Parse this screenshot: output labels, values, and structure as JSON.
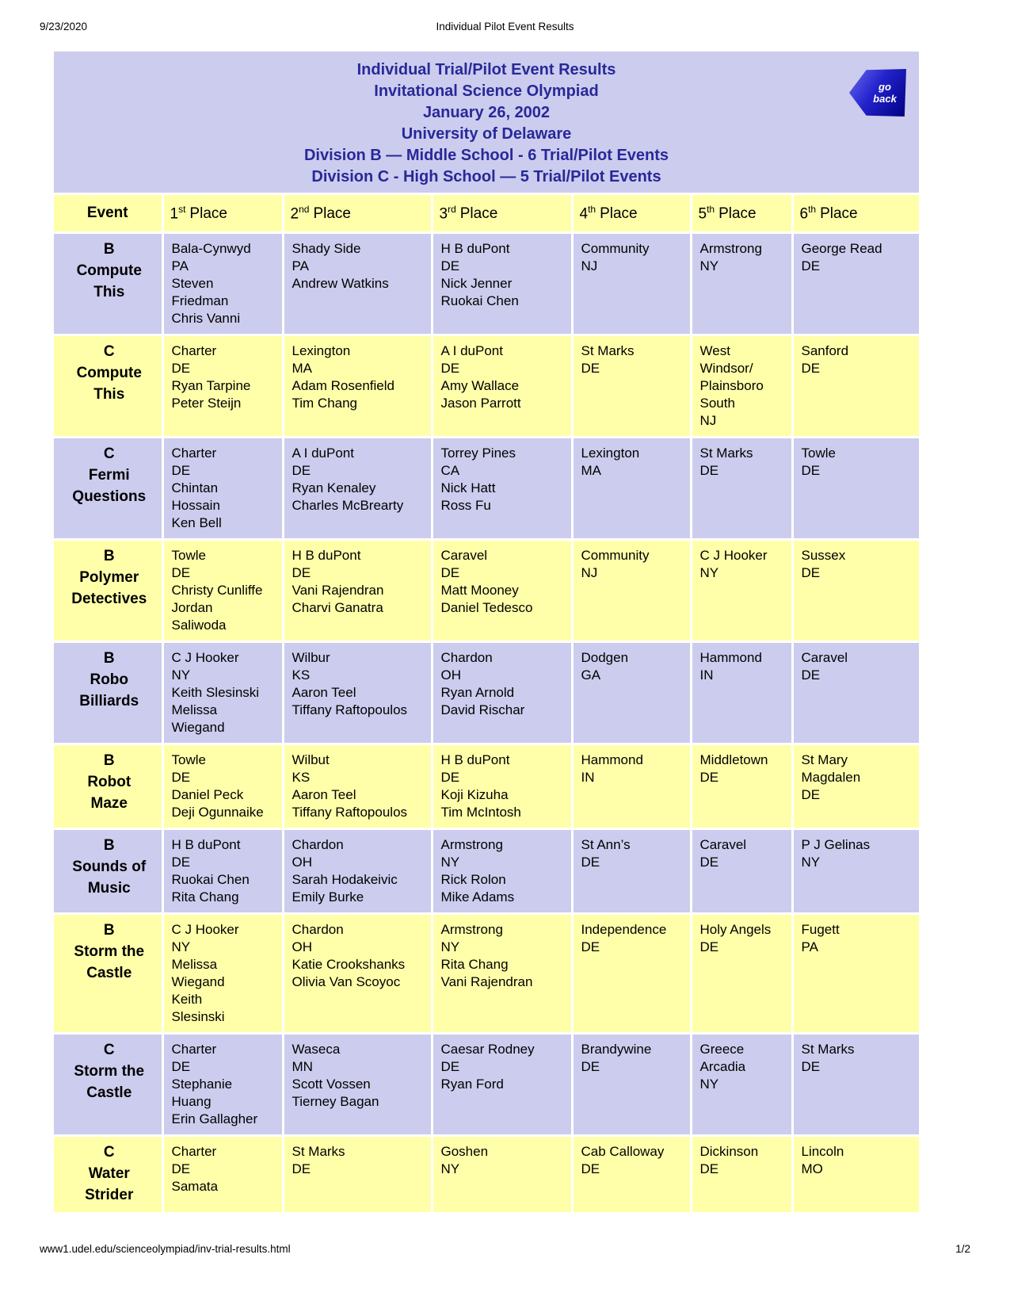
{
  "colors": {
    "lavender": "#ccccee",
    "yellow": "#ffffaa",
    "title_text": "#28289a",
    "back_button": "#2222cc"
  },
  "print_header": {
    "date": "9/23/2020",
    "title": "Individual Pilot Event Results"
  },
  "title_block": {
    "lines": [
      "Individual Trial/Pilot Event Results",
      "Invitational Science Olympiad",
      "January 26, 2002",
      "University of Delaware",
      "Division B — Middle School - 6 Trial/Pilot Events",
      "Division C - High School — 5 Trial/Pilot Events"
    ],
    "go_back_label": "go back"
  },
  "table": {
    "headers": [
      {
        "label": "Event"
      },
      {
        "num": "1",
        "sup": "st",
        "label": "Place"
      },
      {
        "num": "2",
        "sup": "nd",
        "label": "Place"
      },
      {
        "num": "3",
        "sup": "rd",
        "label": "Place"
      },
      {
        "num": "4",
        "sup": "th",
        "label": "Place"
      },
      {
        "num": "5",
        "sup": "th",
        "label": "Place"
      },
      {
        "num": "6",
        "sup": "th",
        "label": "Place"
      }
    ],
    "rows": [
      {
        "event_lines": [
          "B",
          "Compute",
          "This"
        ],
        "places": [
          [
            "Bala-Cynwyd",
            "PA",
            "Steven",
            "Friedman",
            "Chris Vanni"
          ],
          [
            "Shady Side",
            "PA",
            "Andrew Watkins"
          ],
          [
            "H B duPont",
            "DE",
            "Nick Jenner",
            "Ruokai Chen"
          ],
          [
            "Community",
            "NJ"
          ],
          [
            "Armstrong",
            "NY"
          ],
          [
            "George Read",
            "DE"
          ]
        ]
      },
      {
        "event_lines": [
          "C",
          "Compute",
          "This"
        ],
        "places": [
          [
            "Charter",
            "DE",
            "Ryan Tarpine",
            "Peter Steijn"
          ],
          [
            "Lexington",
            "MA",
            "Adam Rosenfield",
            "Tim Chang"
          ],
          [
            "A I duPont",
            "DE",
            "Amy Wallace",
            "Jason Parrott"
          ],
          [
            "St Marks",
            "DE"
          ],
          [
            "West",
            "Windsor/",
            "Plainsboro",
            "South",
            "NJ"
          ],
          [
            "Sanford",
            "DE"
          ]
        ]
      },
      {
        "event_lines": [
          "C",
          "Fermi",
          "Questions"
        ],
        "places": [
          [
            "Charter",
            "DE",
            "Chintan",
            "Hossain",
            "Ken Bell"
          ],
          [
            "A I duPont",
            "DE",
            "Ryan Kenaley",
            "Charles McBrearty"
          ],
          [
            "Torrey Pines",
            "CA",
            "Nick Hatt",
            "Ross Fu"
          ],
          [
            "Lexington",
            "MA"
          ],
          [
            "St Marks",
            "DE"
          ],
          [
            "Towle",
            "DE"
          ]
        ]
      },
      {
        "event_lines": [
          "B",
          "Polymer",
          "Detectives"
        ],
        "places": [
          [
            "Towle",
            "DE",
            "Christy Cunliffe",
            "Jordan",
            "Saliwoda"
          ],
          [
            "H B duPont",
            "DE",
            "Vani Rajendran",
            "Charvi Ganatra"
          ],
          [
            "Caravel",
            "DE",
            "Matt Mooney",
            "Daniel Tedesco"
          ],
          [
            "Community",
            "NJ"
          ],
          [
            "C J Hooker",
            "NY"
          ],
          [
            "Sussex",
            "DE"
          ]
        ]
      },
      {
        "event_lines": [
          "B",
          "Robo",
          "Billiards"
        ],
        "places": [
          [
            "C J Hooker",
            "NY",
            "Keith Slesinski",
            "Melissa",
            "Wiegand"
          ],
          [
            "Wilbur",
            "KS",
            "Aaron Teel",
            "Tiffany Raftopoulos"
          ],
          [
            "Chardon",
            "OH",
            "Ryan Arnold",
            "David Rischar"
          ],
          [
            "Dodgen",
            "GA"
          ],
          [
            "Hammond",
            "IN"
          ],
          [
            "Caravel",
            "DE"
          ]
        ]
      },
      {
        "event_lines": [
          "B",
          "Robot",
          "Maze"
        ],
        "places": [
          [
            "Towle",
            "DE",
            "Daniel Peck",
            "Deji Ogunnaike"
          ],
          [
            "Wilbut",
            "KS",
            "Aaron Teel",
            "Tiffany Raftopoulos"
          ],
          [
            "H B duPont",
            "DE",
            "Koji Kizuha",
            "Tim McIntosh"
          ],
          [
            "Hammond",
            "IN"
          ],
          [
            "Middletown",
            "DE"
          ],
          [
            "St Mary",
            "Magdalen",
            "DE"
          ]
        ]
      },
      {
        "event_lines": [
          "B",
          "Sounds of",
          "Music"
        ],
        "places": [
          [
            "H B duPont",
            "DE",
            "Ruokai Chen",
            "Rita Chang"
          ],
          [
            "Chardon",
            "OH",
            "Sarah Hodakeivic",
            "Emily Burke"
          ],
          [
            "Armstrong",
            "NY",
            "Rick Rolon",
            "Mike Adams"
          ],
          [
            "St Ann’s",
            "DE"
          ],
          [
            "Caravel",
            "DE"
          ],
          [
            "P J Gelinas",
            "NY"
          ]
        ]
      },
      {
        "event_lines": [
          "B",
          "Storm the",
          "Castle"
        ],
        "places": [
          [
            "C J Hooker",
            "NY",
            "Melissa",
            "Wiegand",
            "Keith",
            "Slesinski"
          ],
          [
            "Chardon",
            "OH",
            "Katie Crookshanks",
            "Olivia Van Scoyoc"
          ],
          [
            "Armstrong",
            "NY",
            "Rita Chang",
            "Vani Rajendran"
          ],
          [
            "Independence",
            "DE"
          ],
          [
            "Holy Angels",
            "DE"
          ],
          [
            "Fugett",
            "PA"
          ]
        ]
      },
      {
        "event_lines": [
          "C",
          "Storm the",
          "Castle"
        ],
        "places": [
          [
            "Charter",
            "DE",
            "Stephanie",
            "Huang",
            "Erin Gallagher"
          ],
          [
            "Waseca",
            "MN",
            "Scott Vossen",
            "Tierney Bagan"
          ],
          [
            "Caesar Rodney",
            "DE",
            "Ryan Ford"
          ],
          [
            "Brandywine",
            "DE"
          ],
          [
            "Greece",
            "Arcadia",
            "NY"
          ],
          [
            "St Marks",
            "DE"
          ]
        ]
      },
      {
        "event_lines": [
          "C",
          "Water",
          "Strider"
        ],
        "places": [
          [
            "Charter",
            "DE",
            "Samata"
          ],
          [
            "St Marks",
            "DE"
          ],
          [
            "Goshen",
            "NY"
          ],
          [
            "Cab Calloway",
            "DE"
          ],
          [
            "Dickinson",
            "DE"
          ],
          [
            "Lincoln",
            "MO"
          ]
        ]
      }
    ]
  },
  "print_footer": {
    "url": "www1.udel.edu/scienceolympiad/inv-trial-results.html",
    "page": "1/2"
  }
}
